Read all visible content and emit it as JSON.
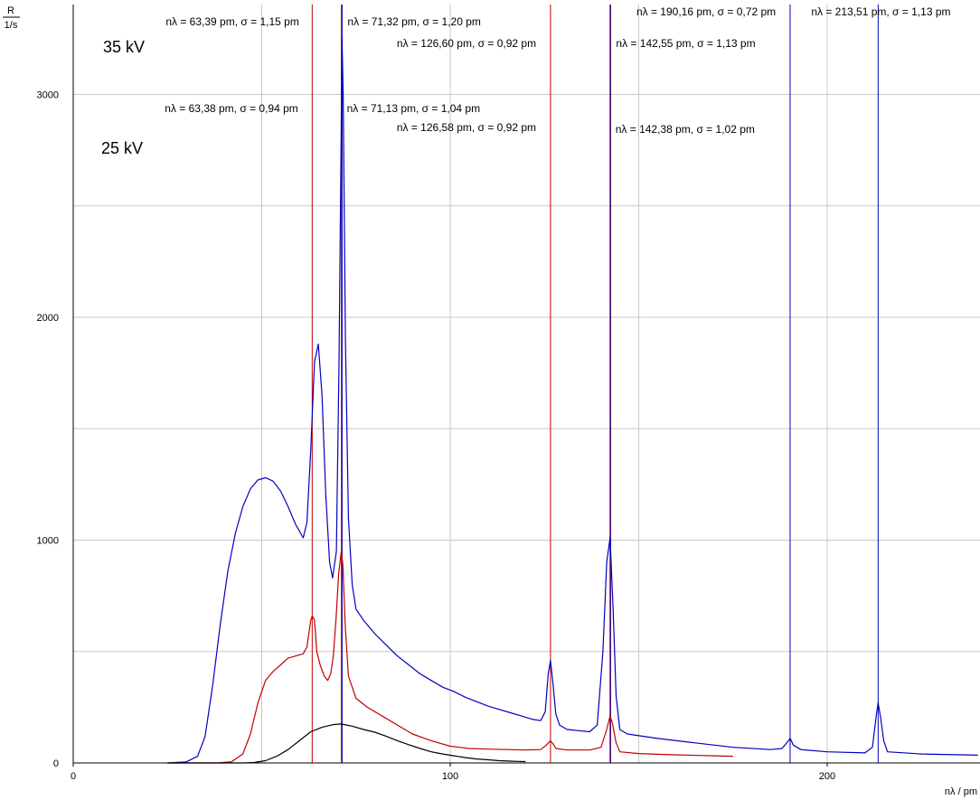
{
  "chart_data": {
    "type": "line",
    "xlabel": "nλ / pm",
    "ylabel_num": "R",
    "ylabel_den": "1/s",
    "xlim": [
      0,
      240
    ],
    "ylim": [
      0,
      3400
    ],
    "xticks": [
      0,
      100,
      200
    ],
    "yticks": [
      0,
      1000,
      2000,
      3000
    ],
    "x_minor_grid": [
      0,
      50,
      100,
      150,
      200
    ],
    "y_minor_grid": [
      500,
      1000,
      1500,
      2000,
      2500,
      3000
    ],
    "colors": {
      "kv35": "#0000c0",
      "kv25": "#c00000",
      "black": "#000000",
      "grid": "#c8c8c8"
    },
    "voltage_labels": [
      "35 kV",
      "25 kV"
    ],
    "series": [
      {
        "key": "kv35",
        "points": [
          [
            25,
            0
          ],
          [
            30,
            5
          ],
          [
            33,
            30
          ],
          [
            35,
            120
          ],
          [
            37,
            350
          ],
          [
            39,
            620
          ],
          [
            41,
            860
          ],
          [
            43,
            1030
          ],
          [
            45,
            1150
          ],
          [
            47,
            1230
          ],
          [
            49,
            1270
          ],
          [
            51,
            1280
          ],
          [
            53,
            1265
          ],
          [
            55,
            1220
          ],
          [
            57,
            1150
          ],
          [
            59,
            1070
          ],
          [
            61,
            1010
          ],
          [
            62,
            1080
          ],
          [
            63,
            1400
          ],
          [
            64,
            1800
          ],
          [
            65,
            1880
          ],
          [
            66,
            1650
          ],
          [
            67,
            1200
          ],
          [
            68,
            900
          ],
          [
            68.8,
            830
          ],
          [
            69.8,
            950
          ],
          [
            70.5,
            1800
          ],
          [
            71,
            2700
          ],
          [
            71.3,
            3250
          ],
          [
            71.6,
            3000
          ],
          [
            72.2,
            1900
          ],
          [
            73,
            1100
          ],
          [
            74,
            800
          ],
          [
            75,
            690
          ],
          [
            77,
            640
          ],
          [
            80,
            580
          ],
          [
            83,
            530
          ],
          [
            86,
            480
          ],
          [
            89,
            440
          ],
          [
            92,
            400
          ],
          [
            95,
            370
          ],
          [
            98,
            340
          ],
          [
            101,
            320
          ],
          [
            104,
            295
          ],
          [
            107,
            275
          ],
          [
            110,
            255
          ],
          [
            113,
            240
          ],
          [
            116,
            225
          ],
          [
            119,
            210
          ],
          [
            122,
            195
          ],
          [
            124,
            190
          ],
          [
            125.2,
            230
          ],
          [
            126,
            400
          ],
          [
            126.6,
            460
          ],
          [
            127.3,
            350
          ],
          [
            128,
            220
          ],
          [
            129,
            170
          ],
          [
            131,
            150
          ],
          [
            134,
            145
          ],
          [
            137,
            140
          ],
          [
            139,
            170
          ],
          [
            140.5,
            500
          ],
          [
            141.5,
            900
          ],
          [
            142.4,
            1010
          ],
          [
            143.2,
            700
          ],
          [
            144,
            300
          ],
          [
            145,
            150
          ],
          [
            147,
            130
          ],
          [
            155,
            110
          ],
          [
            165,
            90
          ],
          [
            175,
            70
          ],
          [
            185,
            60
          ],
          [
            188,
            65
          ],
          [
            189.5,
            95
          ],
          [
            190.2,
            110
          ],
          [
            191,
            80
          ],
          [
            193,
            60
          ],
          [
            200,
            50
          ],
          [
            210,
            45
          ],
          [
            212,
            70
          ],
          [
            213,
            210
          ],
          [
            213.5,
            270
          ],
          [
            214.2,
            200
          ],
          [
            215,
            100
          ],
          [
            216,
            50
          ],
          [
            225,
            40
          ],
          [
            240,
            35
          ]
        ]
      },
      {
        "key": "kv25",
        "points": [
          [
            25,
            0
          ],
          [
            38,
            0
          ],
          [
            42,
            5
          ],
          [
            45,
            40
          ],
          [
            47,
            130
          ],
          [
            49,
            270
          ],
          [
            51,
            370
          ],
          [
            53,
            410
          ],
          [
            55,
            440
          ],
          [
            57,
            470
          ],
          [
            59,
            480
          ],
          [
            61,
            490
          ],
          [
            62,
            520
          ],
          [
            63,
            640
          ],
          [
            63.4,
            660
          ],
          [
            64,
            640
          ],
          [
            64.6,
            500
          ],
          [
            65.5,
            440
          ],
          [
            66.6,
            390
          ],
          [
            67.5,
            370
          ],
          [
            68.3,
            400
          ],
          [
            69,
            480
          ],
          [
            69.7,
            640
          ],
          [
            70.4,
            850
          ],
          [
            71.1,
            950
          ],
          [
            71.5,
            890
          ],
          [
            72.2,
            600
          ],
          [
            73,
            390
          ],
          [
            75,
            290
          ],
          [
            78,
            250
          ],
          [
            82,
            210
          ],
          [
            86,
            170
          ],
          [
            90,
            130
          ],
          [
            95,
            100
          ],
          [
            100,
            75
          ],
          [
            105,
            65
          ],
          [
            110,
            62
          ],
          [
            115,
            60
          ],
          [
            120,
            58
          ],
          [
            124,
            60
          ],
          [
            125.5,
            80
          ],
          [
            126.6,
            100
          ],
          [
            127.5,
            80
          ],
          [
            128,
            65
          ],
          [
            131,
            58
          ],
          [
            137,
            58
          ],
          [
            140,
            70
          ],
          [
            141.5,
            150
          ],
          [
            142.4,
            210
          ],
          [
            143,
            180
          ],
          [
            144,
            90
          ],
          [
            145,
            50
          ],
          [
            150,
            42
          ],
          [
            160,
            36
          ],
          [
            170,
            32
          ],
          [
            175,
            30
          ]
        ]
      },
      {
        "key": "black",
        "points": [
          [
            25,
            0
          ],
          [
            45,
            0
          ],
          [
            48,
            2
          ],
          [
            51,
            10
          ],
          [
            54,
            30
          ],
          [
            57,
            60
          ],
          [
            60,
            100
          ],
          [
            63,
            140
          ],
          [
            66,
            160
          ],
          [
            69,
            172
          ],
          [
            71,
            175
          ],
          [
            74,
            165
          ],
          [
            77,
            150
          ],
          [
            80,
            138
          ],
          [
            83,
            120
          ],
          [
            86,
            100
          ],
          [
            89,
            82
          ],
          [
            92,
            65
          ],
          [
            95,
            50
          ],
          [
            98,
            40
          ],
          [
            101,
            32
          ],
          [
            104,
            24
          ],
          [
            107,
            18
          ],
          [
            110,
            14
          ],
          [
            113,
            10
          ],
          [
            116,
            8
          ],
          [
            118,
            7
          ],
          [
            120,
            6
          ]
        ]
      }
    ],
    "line_markers": [
      {
        "x": 63.39,
        "key": "kv25"
      },
      {
        "x": 71.32,
        "key": "kv35"
      },
      {
        "x": 71.13,
        "key": "kv25"
      },
      {
        "x": 126.6,
        "key": "kv25"
      },
      {
        "x": 142.55,
        "key": "kv35"
      },
      {
        "x": 142.38,
        "key": "kv25"
      },
      {
        "x": 190.16,
        "key": "kv35"
      },
      {
        "x": 213.51,
        "key": "kv35"
      }
    ],
    "annotations": [
      {
        "text": "nλ =  63,39 pm,   σ = 1,15 pm",
        "x": 63.39,
        "row": 0
      },
      {
        "text": "nλ =  71,32 pm,   σ = 1,20 pm",
        "x": 71.32,
        "row": 0
      },
      {
        "text": "nλ =  126,60 pm,   σ = 0,92 pm",
        "x": 126.6,
        "row": 1
      },
      {
        "text": "nλ =  142,55 pm,   σ = 1,13 pm",
        "x": 142.55,
        "row": 2
      },
      {
        "text": "nλ =  190,16 pm,   σ = 0,72 pm",
        "x": 190.16,
        "row": 3
      },
      {
        "text": "nλ =  213,51 pm,   σ = 1,13 pm",
        "x": 213.51,
        "row": 3
      },
      {
        "text": "nλ =  63,38 pm,   σ = 0,94 pm",
        "x": 63.38,
        "row": 4
      },
      {
        "text": "nλ =  71,13 pm,   σ = 1,04 pm",
        "x": 71.13,
        "row": 4
      },
      {
        "text": "nλ =  126,58 pm,   σ = 0,92 pm",
        "x": 126.58,
        "row": 5
      },
      {
        "text": "nλ =  142,38 pm,   σ = 1,02 pm",
        "x": 142.38,
        "row": 6
      }
    ]
  }
}
